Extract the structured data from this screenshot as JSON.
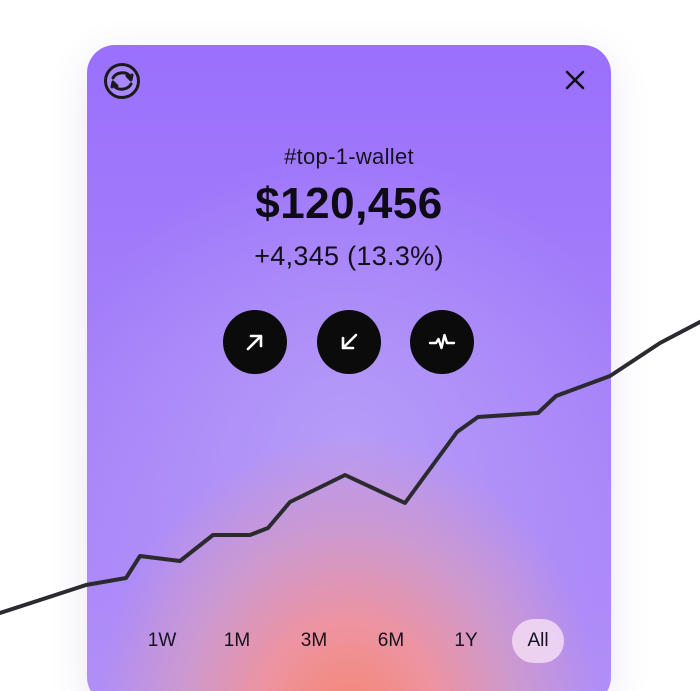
{
  "wallet": {
    "name": "#top-1-wallet",
    "balance": "$120,456",
    "change": "+4,345 (13.3%)"
  },
  "header": {
    "logo_icon": "wallet-logo-icon",
    "close_icon": "close-icon"
  },
  "actions": [
    {
      "icon": "arrow-up-right-icon",
      "meaning": "send"
    },
    {
      "icon": "arrow-down-left-icon",
      "meaning": "receive"
    },
    {
      "icon": "activity-icon",
      "meaning": "activity"
    }
  ],
  "time_ranges": {
    "options": [
      "1W",
      "1M",
      "3M",
      "6M",
      "1Y",
      "All"
    ],
    "selected": "All"
  },
  "colors": {
    "card_top": "#9a70fc",
    "card_bottom_glow": "#f5866c",
    "line": "#2b2b2f",
    "button": "#0b0b0b",
    "active_pill": "#f3dcf4"
  }
}
